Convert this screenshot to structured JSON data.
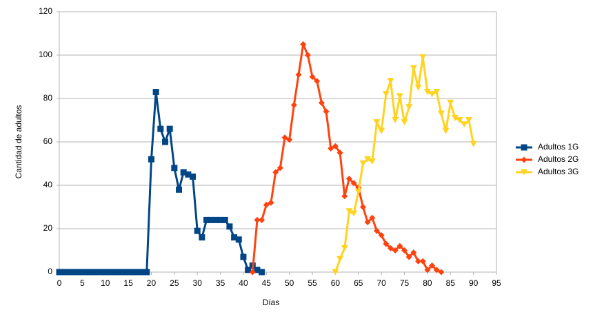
{
  "chart_data": {
    "type": "line",
    "xlabel": "Días",
    "ylabel": "Cantidad de adultos",
    "xlim": [
      0,
      95
    ],
    "xticks": [
      0,
      5,
      10,
      15,
      20,
      25,
      30,
      35,
      40,
      45,
      50,
      55,
      60,
      65,
      70,
      75,
      80,
      85,
      90,
      95
    ],
    "ylim": [
      0,
      120
    ],
    "yticks": [
      0,
      20,
      40,
      60,
      80,
      100,
      120
    ],
    "grid": true,
    "legend": "right",
    "series": [
      {
        "name": "Adultos 1G",
        "color": "#004586",
        "marker": "square",
        "x": [
          0,
          1,
          2,
          3,
          4,
          5,
          6,
          7,
          8,
          9,
          10,
          11,
          12,
          13,
          14,
          15,
          16,
          17,
          18,
          19,
          20,
          21,
          22,
          23,
          24,
          25,
          26,
          27,
          28,
          29,
          30,
          31,
          32,
          33,
          34,
          35,
          36,
          37,
          38,
          39,
          40,
          41,
          42,
          43,
          44
        ],
        "values": [
          0,
          0,
          0,
          0,
          0,
          0,
          0,
          0,
          0,
          0,
          0,
          0,
          0,
          0,
          0,
          0,
          0,
          0,
          0,
          0,
          52,
          83,
          66,
          60,
          66,
          48,
          38,
          46,
          45,
          44,
          19,
          16,
          24,
          24,
          24,
          24,
          24,
          21,
          16,
          15,
          7,
          1,
          3,
          1,
          0
        ]
      },
      {
        "name": "Adultos 2G",
        "color": "#ff420e",
        "marker": "diamond",
        "x": [
          42,
          43,
          44,
          45,
          46,
          47,
          48,
          49,
          50,
          51,
          52,
          53,
          54,
          55,
          56,
          57,
          58,
          59,
          60,
          61,
          62,
          63,
          64,
          65,
          66,
          67,
          68,
          69,
          70,
          71,
          72,
          73,
          74,
          75,
          76,
          77,
          78,
          79,
          80,
          81,
          82,
          83
        ],
        "values": [
          0,
          24,
          24,
          31,
          32,
          46,
          48,
          62,
          61,
          77,
          91,
          105,
          100,
          90,
          88,
          78,
          74,
          57,
          58,
          55,
          35,
          43,
          41,
          39,
          30,
          23,
          25,
          19,
          17,
          13,
          11,
          10,
          12,
          10,
          7,
          9,
          5,
          5,
          1,
          3,
          1,
          0
        ]
      },
      {
        "name": "Adultos 3G",
        "color": "#ffd320",
        "marker": "triangle-down",
        "x": [
          60,
          61,
          62,
          63,
          64,
          65,
          66,
          67,
          68,
          69,
          70,
          71,
          72,
          73,
          74,
          75,
          76,
          77,
          78,
          79,
          80,
          81,
          82,
          83,
          84,
          85,
          86,
          87,
          88,
          89,
          90
        ],
        "values": [
          0,
          6,
          11,
          28,
          27,
          37,
          50,
          52,
          51,
          69,
          65,
          82,
          88,
          70,
          81,
          69,
          76,
          94,
          85,
          99,
          83,
          82,
          83,
          73,
          65,
          78,
          71,
          70,
          68,
          70,
          59
        ]
      }
    ]
  }
}
